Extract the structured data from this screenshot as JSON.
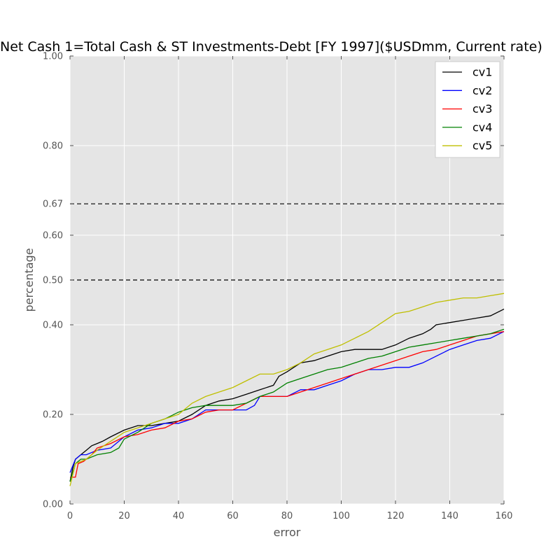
{
  "chart_data": {
    "type": "line",
    "title": "Net Cash 1=Total Cash & ST Investments-Debt [FY 1997]($USDmm, Current rate)",
    "xlabel": "error",
    "ylabel": "percentage",
    "xlim": [
      0,
      160
    ],
    "ylim": [
      0,
      1
    ],
    "xticks": [
      0,
      20,
      40,
      60,
      80,
      100,
      120,
      140,
      160
    ],
    "xtick_labels": [
      "0",
      "20",
      "40",
      "60",
      "80",
      "100",
      "120",
      "140",
      "160"
    ],
    "yticks": [
      0,
      0.2,
      0.4,
      0.5,
      0.6,
      0.67,
      0.8,
      1.0
    ],
    "ytick_labels": [
      "0.00",
      "0.20",
      "0.40",
      "0.50",
      "0.60",
      "0.67",
      "0.80",
      "1.00"
    ],
    "grid": true,
    "legend_position": "top-right",
    "reference_lines": [
      0.67,
      0.5
    ],
    "series": [
      {
        "name": "cv1",
        "color": "#000000",
        "x": [
          0,
          1,
          2,
          4,
          6,
          8,
          10,
          12,
          15,
          20,
          25,
          30,
          35,
          40,
          45,
          50,
          55,
          60,
          65,
          70,
          75,
          77,
          80,
          85,
          90,
          95,
          100,
          105,
          110,
          115,
          120,
          125,
          130,
          133,
          135,
          140,
          145,
          150,
          155,
          160
        ],
        "y": [
          0.05,
          0.08,
          0.1,
          0.11,
          0.12,
          0.13,
          0.135,
          0.14,
          0.15,
          0.165,
          0.175,
          0.175,
          0.18,
          0.185,
          0.2,
          0.22,
          0.23,
          0.235,
          0.245,
          0.255,
          0.265,
          0.285,
          0.295,
          0.315,
          0.32,
          0.33,
          0.34,
          0.345,
          0.345,
          0.345,
          0.355,
          0.37,
          0.38,
          0.39,
          0.4,
          0.405,
          0.41,
          0.415,
          0.42,
          0.435
        ]
      },
      {
        "name": "cv2",
        "color": "#0000ff",
        "x": [
          0,
          2,
          4,
          6,
          10,
          15,
          20,
          25,
          30,
          35,
          40,
          45,
          50,
          55,
          60,
          65,
          68,
          70,
          75,
          80,
          85,
          90,
          95,
          100,
          105,
          110,
          115,
          120,
          125,
          130,
          135,
          140,
          145,
          150,
          155,
          160
        ],
        "y": [
          0.07,
          0.1,
          0.11,
          0.11,
          0.12,
          0.125,
          0.15,
          0.165,
          0.17,
          0.18,
          0.18,
          0.19,
          0.21,
          0.21,
          0.21,
          0.21,
          0.22,
          0.24,
          0.24,
          0.24,
          0.255,
          0.255,
          0.265,
          0.275,
          0.29,
          0.3,
          0.3,
          0.305,
          0.305,
          0.315,
          0.33,
          0.345,
          0.355,
          0.365,
          0.37,
          0.385
        ]
      },
      {
        "name": "cv3",
        "color": "#ff0000",
        "x": [
          0,
          2,
          3,
          5,
          8,
          10,
          15,
          20,
          25,
          30,
          35,
          40,
          45,
          50,
          55,
          60,
          65,
          70,
          75,
          80,
          85,
          90,
          95,
          100,
          105,
          110,
          115,
          120,
          125,
          130,
          135,
          140,
          145,
          150,
          155,
          160
        ],
        "y": [
          0.06,
          0.06,
          0.09,
          0.095,
          0.11,
          0.125,
          0.135,
          0.15,
          0.155,
          0.165,
          0.17,
          0.185,
          0.19,
          0.205,
          0.21,
          0.21,
          0.225,
          0.24,
          0.24,
          0.24,
          0.25,
          0.26,
          0.27,
          0.28,
          0.29,
          0.3,
          0.31,
          0.32,
          0.33,
          0.34,
          0.345,
          0.355,
          0.365,
          0.375,
          0.38,
          0.385
        ]
      },
      {
        "name": "cv4",
        "color": "#008000",
        "x": [
          0,
          2,
          4,
          6,
          10,
          15,
          18,
          20,
          25,
          30,
          35,
          40,
          45,
          50,
          55,
          60,
          65,
          70,
          75,
          80,
          85,
          90,
          95,
          100,
          105,
          110,
          115,
          120,
          125,
          130,
          135,
          140,
          145,
          150,
          155,
          160
        ],
        "y": [
          0.05,
          0.09,
          0.1,
          0.1,
          0.11,
          0.115,
          0.125,
          0.145,
          0.16,
          0.18,
          0.19,
          0.205,
          0.215,
          0.22,
          0.22,
          0.22,
          0.225,
          0.24,
          0.25,
          0.27,
          0.28,
          0.29,
          0.3,
          0.305,
          0.315,
          0.325,
          0.33,
          0.34,
          0.35,
          0.355,
          0.36,
          0.365,
          0.37,
          0.375,
          0.38,
          0.39
        ]
      },
      {
        "name": "cv5",
        "color": "#bfbf00",
        "x": [
          0,
          2,
          4,
          6,
          10,
          15,
          20,
          25,
          30,
          35,
          40,
          45,
          50,
          55,
          60,
          65,
          70,
          75,
          80,
          85,
          90,
          95,
          100,
          105,
          110,
          115,
          120,
          125,
          130,
          135,
          140,
          145,
          150,
          155,
          160
        ],
        "y": [
          0.04,
          0.09,
          0.095,
          0.1,
          0.12,
          0.14,
          0.16,
          0.17,
          0.18,
          0.19,
          0.2,
          0.225,
          0.24,
          0.25,
          0.26,
          0.275,
          0.29,
          0.29,
          0.3,
          0.315,
          0.335,
          0.345,
          0.355,
          0.37,
          0.385,
          0.405,
          0.425,
          0.43,
          0.44,
          0.45,
          0.455,
          0.46,
          0.46,
          0.465,
          0.47
        ]
      }
    ]
  }
}
